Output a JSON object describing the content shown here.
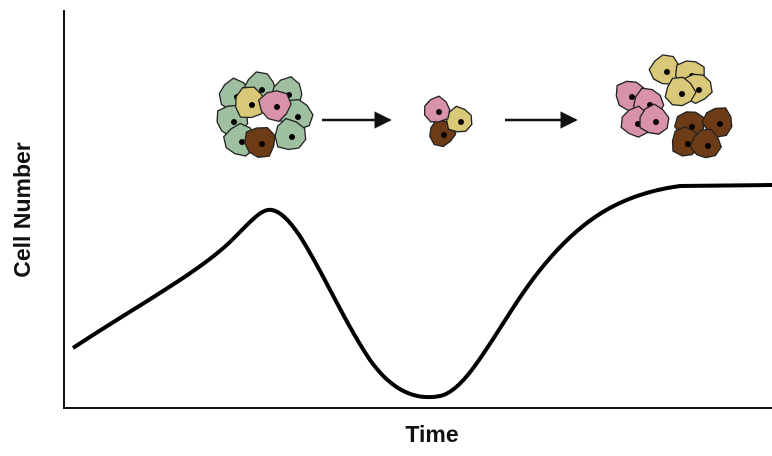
{
  "x_axis_label": "Time",
  "y_axis_label": "Cell Number"
}
